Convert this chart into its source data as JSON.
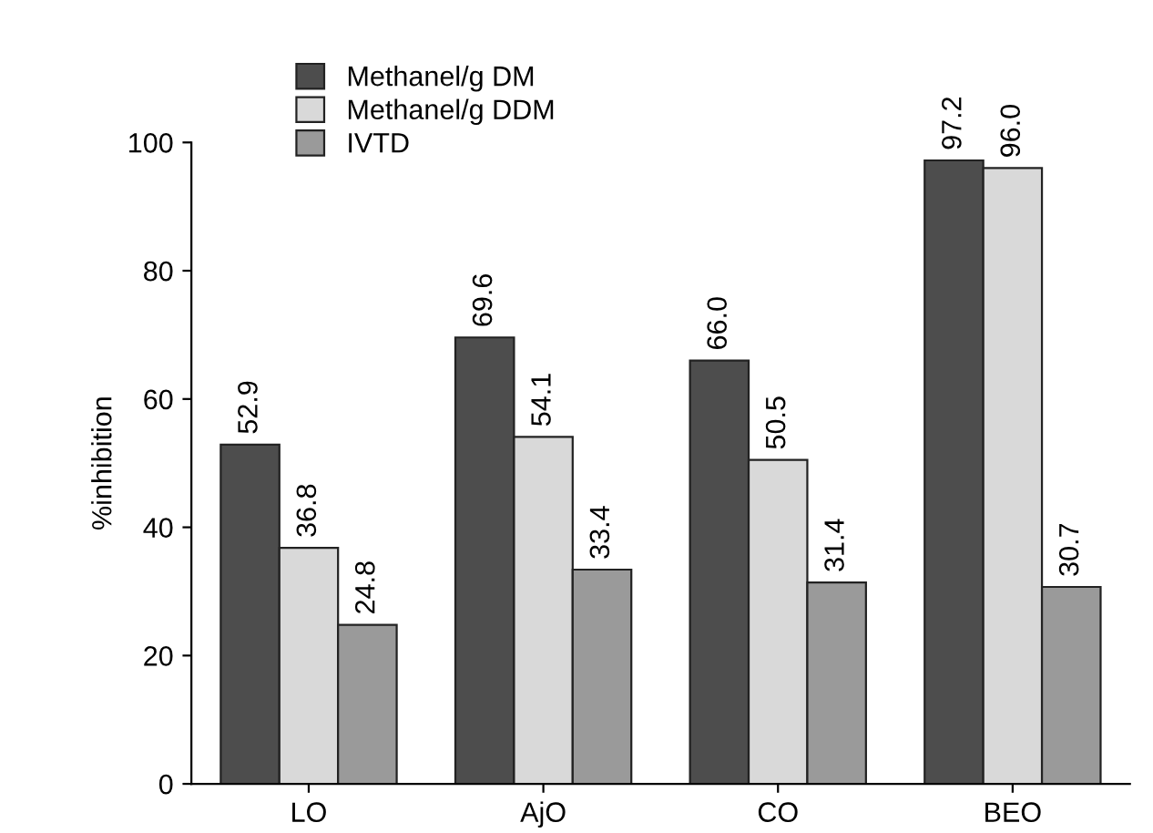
{
  "chart_data": {
    "type": "bar",
    "ylabel": "%inhibition",
    "categories": [
      "LO",
      "AjO",
      "CO",
      "BEO"
    ],
    "series": [
      {
        "name": "Methanel/g DM",
        "color": "#4d4d4d",
        "values": [
          52.9,
          69.6,
          66.0,
          97.2
        ],
        "value_labels": [
          "52.9",
          "69.6",
          "66.0",
          "97.2"
        ]
      },
      {
        "name": "Methanel/g DDM",
        "color": "#d9d9d9",
        "values": [
          36.8,
          54.1,
          50.5,
          96.0
        ],
        "value_labels": [
          "36.8",
          "54.1",
          "50.5",
          "96.0"
        ]
      },
      {
        "name": "IVTD",
        "color": "#9a9a9a",
        "values": [
          24.8,
          33.4,
          31.4,
          30.7
        ],
        "value_labels": [
          "24.8",
          "33.4",
          "31.4",
          "30.7"
        ]
      }
    ],
    "ylim": [
      0,
      100
    ],
    "yticks": [
      0,
      20,
      40,
      60,
      80,
      100
    ],
    "grid": false,
    "legend": "top left"
  }
}
